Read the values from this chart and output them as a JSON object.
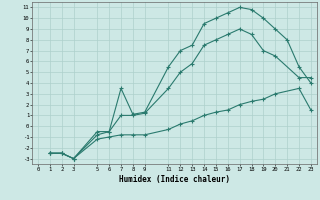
{
  "title": "",
  "xlabel": "Humidex (Indice chaleur)",
  "bg_color": "#cde8e5",
  "line_color": "#2a7a6e",
  "grid_color": "#aed0cc",
  "xlim": [
    -0.5,
    23.5
  ],
  "ylim": [
    -3.5,
    11.5
  ],
  "xticks": [
    0,
    1,
    2,
    3,
    5,
    6,
    7,
    8,
    9,
    11,
    12,
    13,
    14,
    15,
    16,
    17,
    18,
    19,
    20,
    21,
    22,
    23
  ],
  "yticks": [
    -3,
    -2,
    -1,
    0,
    1,
    2,
    3,
    4,
    5,
    6,
    7,
    8,
    9,
    10,
    11
  ],
  "line1_x": [
    1,
    2,
    3,
    5,
    6,
    7,
    8,
    9,
    11,
    12,
    13,
    14,
    15,
    16,
    17,
    18,
    19,
    20,
    21,
    22,
    23
  ],
  "line1_y": [
    -2.5,
    -2.5,
    -3.0,
    -0.5,
    -0.5,
    3.5,
    1.1,
    1.3,
    5.5,
    7.0,
    7.5,
    9.5,
    10.0,
    10.5,
    11.0,
    10.8,
    10.0,
    9.0,
    8.0,
    5.5,
    4.0
  ],
  "line2_x": [
    1,
    2,
    3,
    5,
    6,
    7,
    8,
    9,
    11,
    12,
    13,
    14,
    15,
    16,
    17,
    18,
    19,
    20,
    22,
    23
  ],
  "line2_y": [
    -2.5,
    -2.5,
    -3.0,
    -0.8,
    -0.5,
    1.0,
    1.0,
    1.2,
    3.5,
    5.0,
    5.8,
    7.5,
    8.0,
    8.5,
    9.0,
    8.5,
    7.0,
    6.5,
    4.5,
    4.5
  ],
  "line3_x": [
    1,
    2,
    3,
    5,
    6,
    7,
    8,
    9,
    11,
    12,
    13,
    14,
    15,
    16,
    17,
    18,
    19,
    20,
    22,
    23
  ],
  "line3_y": [
    -2.5,
    -2.5,
    -3.0,
    -1.2,
    -1.0,
    -0.8,
    -0.8,
    -0.8,
    -0.3,
    0.2,
    0.5,
    1.0,
    1.3,
    1.5,
    2.0,
    2.3,
    2.5,
    3.0,
    3.5,
    1.5
  ]
}
